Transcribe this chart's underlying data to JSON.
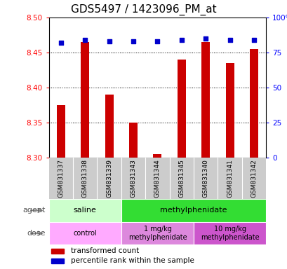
{
  "title": "GDS5497 / 1423096_PM_at",
  "samples": [
    "GSM831337",
    "GSM831338",
    "GSM831339",
    "GSM831343",
    "GSM831344",
    "GSM831345",
    "GSM831340",
    "GSM831341",
    "GSM831342"
  ],
  "bar_values": [
    8.375,
    8.465,
    8.39,
    8.35,
    8.305,
    8.44,
    8.465,
    8.435,
    8.455
  ],
  "percentile_values": [
    82,
    84,
    83,
    83,
    83,
    84,
    85,
    84,
    84
  ],
  "ylim_left": [
    8.3,
    8.5
  ],
  "ylim_right": [
    0,
    100
  ],
  "yticks_left": [
    8.3,
    8.35,
    8.4,
    8.45,
    8.5
  ],
  "yticks_right": [
    0,
    25,
    50,
    75,
    100
  ],
  "bar_color": "#cc0000",
  "dot_color": "#0000cc",
  "bar_bottom": 8.3,
  "agent_groups": [
    {
      "label": "saline",
      "start": 0,
      "end": 3,
      "color": "#ccffcc"
    },
    {
      "label": "methylphenidate",
      "start": 3,
      "end": 9,
      "color": "#33dd33"
    }
  ],
  "dose_groups": [
    {
      "label": "control",
      "start": 0,
      "end": 3,
      "color": "#ffaaff"
    },
    {
      "label": "1 mg/kg\nmethylphenidate",
      "start": 3,
      "end": 6,
      "color": "#dd88dd"
    },
    {
      "label": "10 mg/kg\nmethylphenidate",
      "start": 6,
      "end": 9,
      "color": "#cc55cc"
    }
  ],
  "legend_items": [
    {
      "color": "#cc0000",
      "label": "transformed count"
    },
    {
      "color": "#0000cc",
      "label": "percentile rank within the sample"
    }
  ],
  "agent_label": "agent",
  "dose_label": "dose",
  "background_color": "#ffffff",
  "plot_bg_color": "#ffffff",
  "grid_color": "#000000",
  "sample_bg_color": "#cccccc",
  "title_fontsize": 11,
  "tick_fontsize": 7.5,
  "annotation_fontsize": 8,
  "legend_fontsize": 7.5,
  "bar_width": 0.35
}
